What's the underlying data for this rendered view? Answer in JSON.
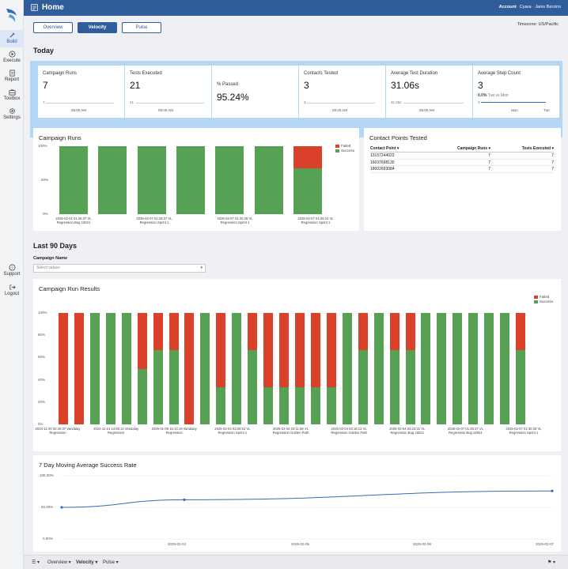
{
  "app": {
    "title": "Home"
  },
  "account": {
    "label": "Account",
    "user": "Cyara · Janis Berzins"
  },
  "sidebar": {
    "items": [
      {
        "label": "Build"
      },
      {
        "label": "Execute"
      },
      {
        "label": "Report"
      },
      {
        "label": "Toolbox"
      },
      {
        "label": "Settings"
      }
    ],
    "bottom": [
      {
        "label": "Support"
      },
      {
        "label": "Logout"
      }
    ]
  },
  "tabs": [
    {
      "label": "Overview"
    },
    {
      "label": "Velocity"
    },
    {
      "label": "Pulse"
    }
  ],
  "timezone": "Timezone: US/Pacific",
  "today": {
    "heading": "Today",
    "campaign_runs": {
      "title": "Campaign Runs",
      "value": "7",
      "mini_value": "7",
      "tick": "09:00 AM"
    },
    "tests_executed": {
      "title": "Tests Executed",
      "value": "21",
      "mini_value": "21",
      "tick": "09:00 AM"
    },
    "percent_passed": {
      "title": "% Passed",
      "value": "95.24%"
    },
    "contacts_tested": {
      "title": "Contacts Tested",
      "value": "3",
      "mini_value": "3",
      "tick": "09:00 AM"
    },
    "avg_duration": {
      "title": "Average Test Duration",
      "value": "31.06s",
      "mini_value": "31.06s",
      "tick": "09:00 AM"
    },
    "avg_steps": {
      "title": "Average Step Count",
      "value": "3",
      "change": "0.0%",
      "compare": "Tue vs Mon",
      "mini_value": "3",
      "tick1": "Mon",
      "tick2": "Tue"
    }
  },
  "campaign_runs_chart": {
    "title": "Campaign Runs",
    "y_ticks": [
      "100%",
      "50%",
      "0%"
    ],
    "legend": [
      {
        "name": "Failed",
        "color": "#d9412a"
      },
      {
        "name": "Success",
        "color": "#57a155"
      }
    ],
    "x_labels": [
      [
        "2025-02-01 01:25:37 VL",
        "Regression Bug 18021"
      ],
      [
        "2025-02-07 01:25:37 VL",
        "Regression Sprint 1"
      ],
      [
        "2025-02-07 01:30:28 VL",
        "Regression Sprint 1"
      ],
      [
        "2025-02-07 01:49:24 VL",
        "Regression Sprint 1"
      ]
    ]
  },
  "contact_points": {
    "title": "Contact Points Tested",
    "columns": [
      "Contact Point",
      "Campaign Runs",
      "Tests Executed"
    ],
    "rows": [
      [
        "13157244022",
        "7",
        "7"
      ],
      [
        "16037698130",
        "7",
        "7"
      ],
      [
        "18002693084",
        "7",
        "7"
      ]
    ]
  },
  "last90": {
    "heading": "Last 90 Days",
    "filter_label": "Campaign Name",
    "filter_placeholder": "Select values"
  },
  "run_results": {
    "title": "Campaign Run Results",
    "y_ticks": [
      "100%",
      "80%",
      "60%",
      "40%",
      "20%",
      "0%"
    ],
    "legend": [
      {
        "name": "Failed",
        "color": "#d9412a"
      },
      {
        "name": "Success",
        "color": "#57a155"
      }
    ],
    "x_labels": [
      [
        "2024-11-20 02:40:37 Vandalay",
        "Regression"
      ],
      [
        "2024-11-21 14:56:14 Vandalay",
        "Regression"
      ],
      [
        "2025-01-09 15:14:19 Vandalay",
        "Regression"
      ],
      [
        "2025-02-04 03:26:53 VL",
        "Regression Sprint 1"
      ],
      [
        "2025-02-04 03:11:58 VL",
        "Regression Golden Path"
      ],
      [
        "2025-02-04 03:16:13 VL",
        "Regression Golden Path"
      ],
      [
        "2025-02-04 03:23:31 VL",
        "Regression Bug 18021"
      ],
      [
        "2025-02-07 01:25:37 VL",
        "Regression Bug 18021"
      ],
      [
        "2025-02-07 01:30:28 VL",
        "Regression Sprint 1"
      ]
    ]
  },
  "moving_avg": {
    "title": "7 Day Moving Average Success Rate",
    "y_ticks": [
      "100.00%",
      "50.00%",
      "0.00%"
    ],
    "x_ticks": [
      "2025-02-04",
      "2025-02-05",
      "2025-02-06",
      "2025-02-07"
    ]
  },
  "bottom_tabs": [
    {
      "label": "Overview"
    },
    {
      "label": "Velocity"
    },
    {
      "label": "Pulse"
    }
  ],
  "chart_data": [
    {
      "type": "bar",
      "title": "Campaign Runs",
      "stacked": true,
      "ylim": [
        0,
        100
      ],
      "categories": [
        "1",
        "2",
        "3",
        "4",
        "5",
        "6",
        "7"
      ],
      "series": [
        {
          "name": "Success",
          "values": [
            100,
            100,
            100,
            100,
            100,
            100,
            67
          ]
        },
        {
          "name": "Failed",
          "values": [
            0,
            0,
            0,
            0,
            0,
            0,
            33
          ]
        }
      ]
    },
    {
      "type": "bar",
      "title": "Campaign Run Results",
      "stacked": true,
      "ylim": [
        0,
        100
      ],
      "categories": [
        "1",
        "2",
        "3",
        "4",
        "5",
        "6",
        "7",
        "8",
        "9",
        "10",
        "11",
        "12",
        "13",
        "14",
        "15",
        "16",
        "17",
        "18",
        "19",
        "20",
        "21",
        "22",
        "23",
        "24",
        "25",
        "26",
        "27",
        "28",
        "29",
        "30"
      ],
      "series": [
        {
          "name": "Success",
          "values": [
            0,
            0,
            100,
            100,
            100,
            50,
            67,
            67,
            0,
            100,
            33,
            100,
            67,
            33,
            33,
            33,
            33,
            33,
            100,
            67,
            100,
            67,
            67,
            100,
            100,
            100,
            100,
            100,
            100,
            67
          ]
        },
        {
          "name": "Failed",
          "values": [
            100,
            100,
            0,
            0,
            0,
            50,
            33,
            33,
            100,
            0,
            67,
            0,
            33,
            67,
            67,
            67,
            67,
            67,
            0,
            33,
            0,
            33,
            33,
            0,
            0,
            0,
            0,
            0,
            0,
            33
          ]
        }
      ]
    },
    {
      "type": "line",
      "title": "7 Day Moving Average Success Rate",
      "x": [
        "2025-02-03",
        "2025-02-04",
        "2025-02-07"
      ],
      "values": [
        50,
        62,
        76
      ],
      "ylim": [
        0,
        100
      ]
    }
  ]
}
